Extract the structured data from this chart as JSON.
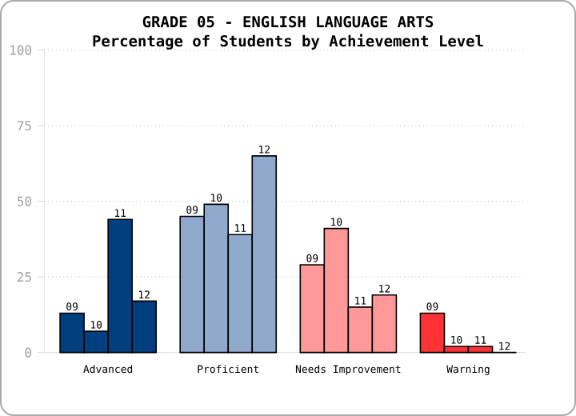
{
  "chart_data": {
    "type": "bar",
    "title": "GRADE 05 - ENGLISH LANGUAGE ARTS",
    "subtitle": "Percentage of Students by Achievement Level",
    "categories": [
      "Advanced",
      "Proficient",
      "Needs Improvement",
      "Warning"
    ],
    "series": [
      {
        "name": "09",
        "colors": [
          "#023f80",
          "#8fa8cc",
          "#ff9999",
          "#ff3333"
        ],
        "values": [
          13,
          45,
          29,
          13
        ]
      },
      {
        "name": "10",
        "colors": [
          "#023f80",
          "#8fa8cc",
          "#ff9999",
          "#ff3333"
        ],
        "values": [
          7,
          49,
          41,
          2
        ]
      },
      {
        "name": "11",
        "colors": [
          "#023f80",
          "#8fa8cc",
          "#ff9999",
          "#ff3333"
        ],
        "values": [
          44,
          39,
          15,
          2
        ]
      },
      {
        "name": "12",
        "colors": [
          "#023f80",
          "#8fa8cc",
          "#ff9999",
          "#ff3333"
        ],
        "values": [
          17,
          65,
          19,
          0
        ]
      }
    ],
    "ylim": [
      0,
      100
    ],
    "yticks": [
      0,
      25,
      50,
      75,
      100
    ],
    "grid": "y"
  }
}
